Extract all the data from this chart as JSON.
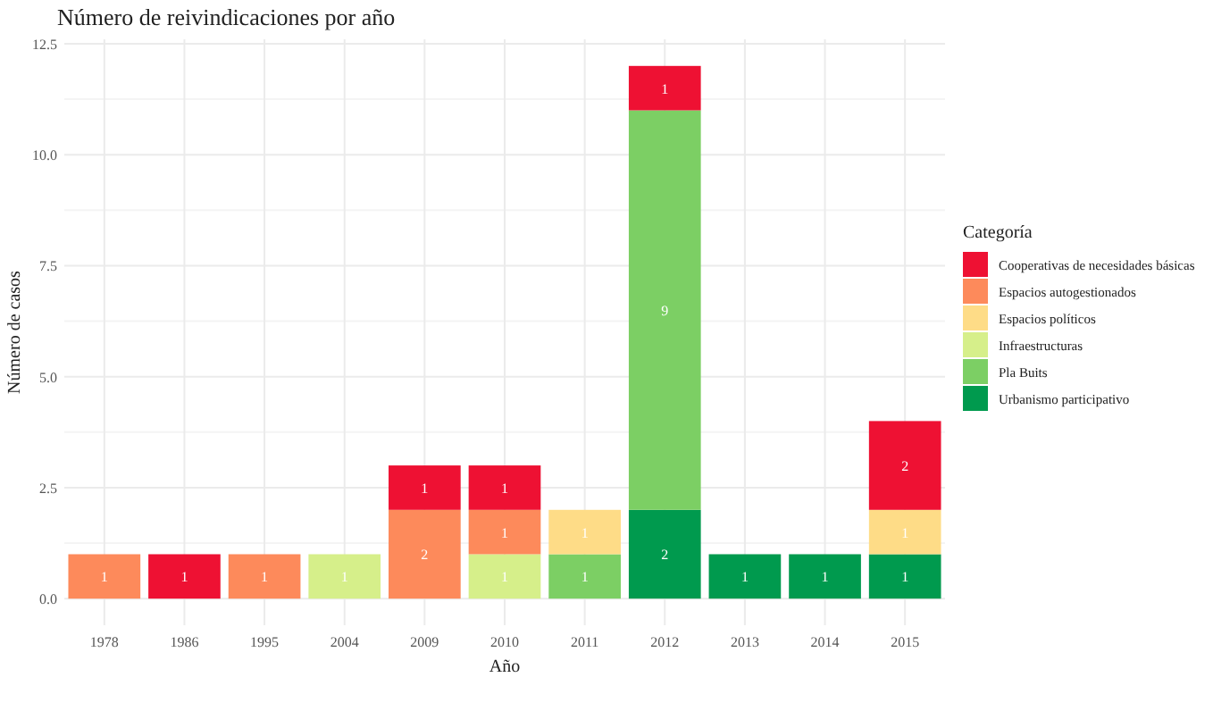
{
  "chart_data": {
    "type": "bar",
    "title": "Número de reivindicaciones por año",
    "xlabel": "Año",
    "ylabel": "Número de casos",
    "legend_title": "Categoría",
    "categories": [
      "1978",
      "1986",
      "1995",
      "2004",
      "2009",
      "2010",
      "2011",
      "2012",
      "2013",
      "2014",
      "2015"
    ],
    "series": [
      {
        "name": "Urbanismo participativo",
        "color": "#009a4e",
        "values": [
          null,
          null,
          null,
          null,
          null,
          null,
          null,
          2,
          1,
          1,
          1
        ]
      },
      {
        "name": "Pla Buits",
        "color": "#7ccf64",
        "values": [
          null,
          null,
          null,
          null,
          null,
          null,
          1,
          9,
          null,
          null,
          null
        ]
      },
      {
        "name": "Infraestructuras",
        "color": "#d6ef8a",
        "values": [
          null,
          null,
          null,
          1,
          null,
          1,
          null,
          null,
          null,
          null,
          null
        ]
      },
      {
        "name": "Espacios políticos",
        "color": "#fedc87",
        "values": [
          null,
          null,
          null,
          null,
          null,
          null,
          1,
          null,
          null,
          null,
          1
        ]
      },
      {
        "name": "Espacios autogestionados",
        "color": "#fd8a5b",
        "values": [
          1,
          null,
          1,
          null,
          2,
          1,
          null,
          null,
          null,
          null,
          null
        ]
      },
      {
        "name": "Cooperativas de necesidades básicas",
        "color": "#ee1133",
        "values": [
          null,
          1,
          null,
          null,
          1,
          1,
          null,
          1,
          null,
          null,
          2
        ]
      }
    ],
    "stacked": true,
    "data_labels": true,
    "ylim": [
      -0.6,
      12.6
    ],
    "yticks": [
      {
        "value": 0,
        "label": "0.0"
      },
      {
        "value": 2.5,
        "label": "2.5"
      },
      {
        "value": 5,
        "label": "5.0"
      },
      {
        "value": 7.5,
        "label": "7.5"
      },
      {
        "value": 10,
        "label": "10.0"
      },
      {
        "value": 12.5,
        "label": "12.5"
      }
    ],
    "grid": true,
    "legend": "right"
  }
}
